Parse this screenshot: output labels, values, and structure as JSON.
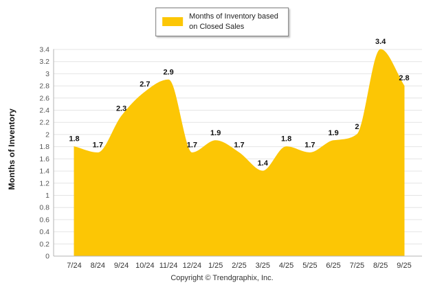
{
  "legend": {
    "lines": [
      "Months of Inventory based",
      "on Closed Sales"
    ]
  },
  "y_axis_title": "Months of Inventory",
  "footer": {
    "copyright": "Copyright © Trendgraphix, Inc."
  },
  "chart_data": {
    "type": "area",
    "title": "Months of Inventory based on Closed Sales",
    "categories": [
      "7/24",
      "8/24",
      "9/24",
      "10/24",
      "11/24",
      "12/24",
      "1/25",
      "2/25",
      "3/25",
      "4/25",
      "5/25",
      "6/25",
      "7/25",
      "8/25",
      "9/25"
    ],
    "values": [
      1.8,
      1.7,
      2.3,
      2.7,
      2.9,
      1.7,
      1.9,
      1.7,
      1.4,
      1.8,
      1.7,
      1.9,
      2,
      3.4,
      2.8
    ],
    "labels": [
      "1.8",
      "1.7",
      "2.3",
      "2.7",
      "2.9",
      "1.7",
      "1.9",
      "1.7",
      "1.4",
      "1.8",
      "1.7",
      "1.9",
      "2",
      "3.4",
      "2.8"
    ],
    "xlabel": "",
    "ylabel": "Months of Inventory",
    "ylim": [
      0,
      3.4
    ],
    "ytick_step": 0.2,
    "yticks": [
      "0",
      "0.2",
      "0.4",
      "0.6",
      "0.8",
      "1",
      "1.2",
      "1.4",
      "1.6",
      "1.8",
      "2",
      "2.2",
      "2.4",
      "2.6",
      "2.8",
      "3",
      "3.2",
      "3.4"
    ],
    "grid": "horizontal",
    "legend_position": "top-center",
    "colors": {
      "fill": "#FCC605",
      "grid": "#e4e4e4",
      "axis": "#b3b3b3",
      "tick_text": "#555555",
      "label_text": "#111111"
    }
  }
}
